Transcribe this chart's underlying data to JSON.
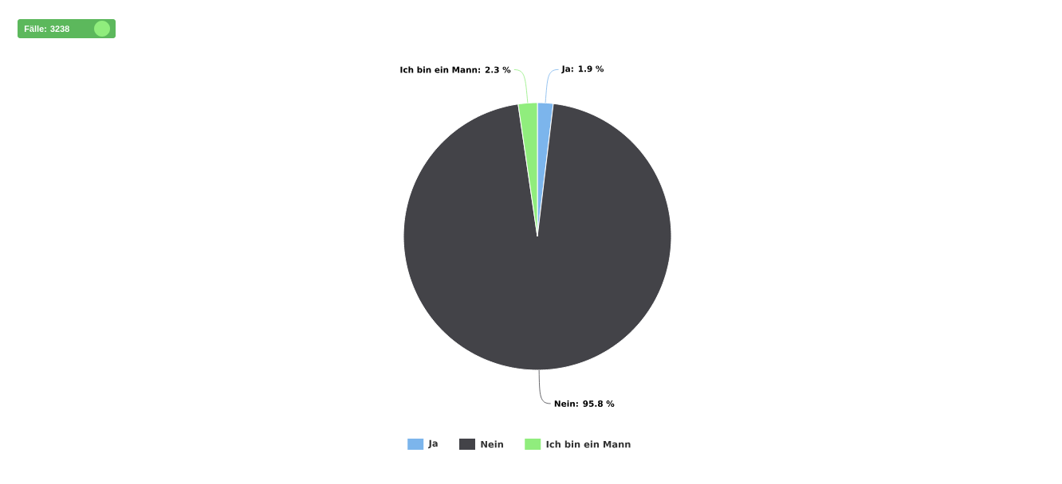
{
  "chart_data": {
    "type": "pie",
    "categories": [
      "Ja",
      "Nein",
      "Ich bin ein Mann"
    ],
    "values": [
      1.9,
      95.8,
      2.3
    ],
    "colors": [
      "#7cb5ec",
      "#434348",
      "#90ed7d"
    ],
    "value_labels": [
      "Ja: 1.9 %",
      "Nein: 95.8 %",
      "Ich bin ein Mann: 2.3 %"
    ],
    "legend": "bottom",
    "annotations": [
      "Fälle: 3238"
    ]
  }
}
